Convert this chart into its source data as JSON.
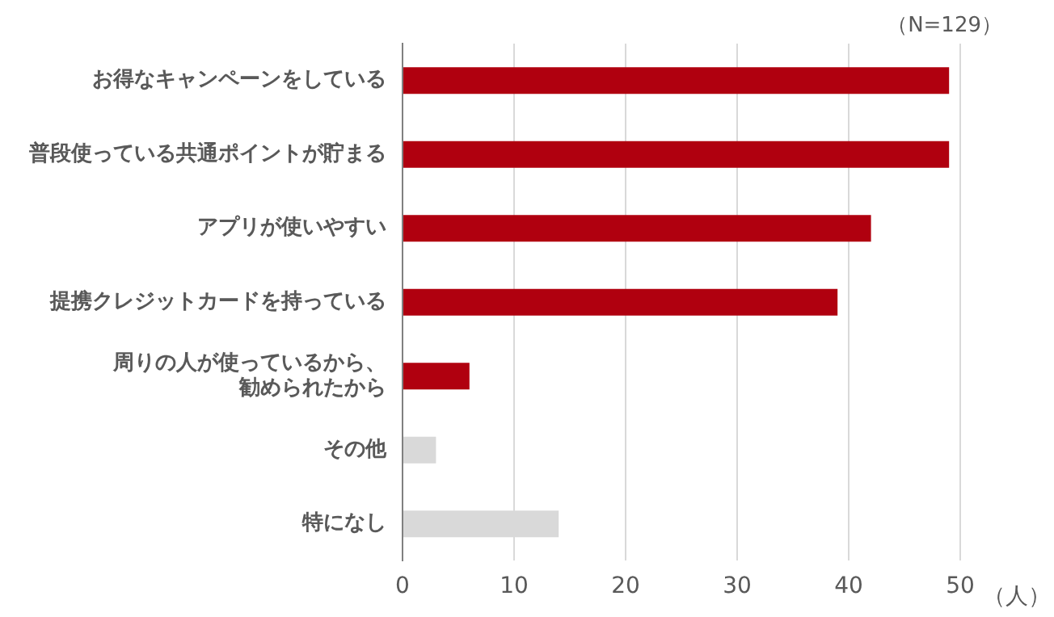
{
  "chart_data": {
    "type": "bar",
    "orientation": "horizontal",
    "xlabel": "（人）",
    "annotations": [
      "（N=129）"
    ],
    "categories": [
      "お得なキャンペーンをしている",
      "普段使っている共通ポイントが貯まる",
      "アプリが使いやすい",
      "提携クレジットカードを持っている",
      "周りの人が使っているから、勧められたから",
      "その他",
      "特になし"
    ],
    "values": [
      49,
      49,
      42,
      39,
      6,
      3,
      14
    ],
    "colors": [
      "#b0000f",
      "#b0000f",
      "#b0000f",
      "#b0000f",
      "#b0000f",
      "#d9d9d9",
      "#d9d9d9"
    ],
    "xlim": [
      0,
      50
    ],
    "xticks": [
      0,
      10,
      20,
      30,
      40,
      50
    ],
    "grid": "x",
    "legend": false
  }
}
